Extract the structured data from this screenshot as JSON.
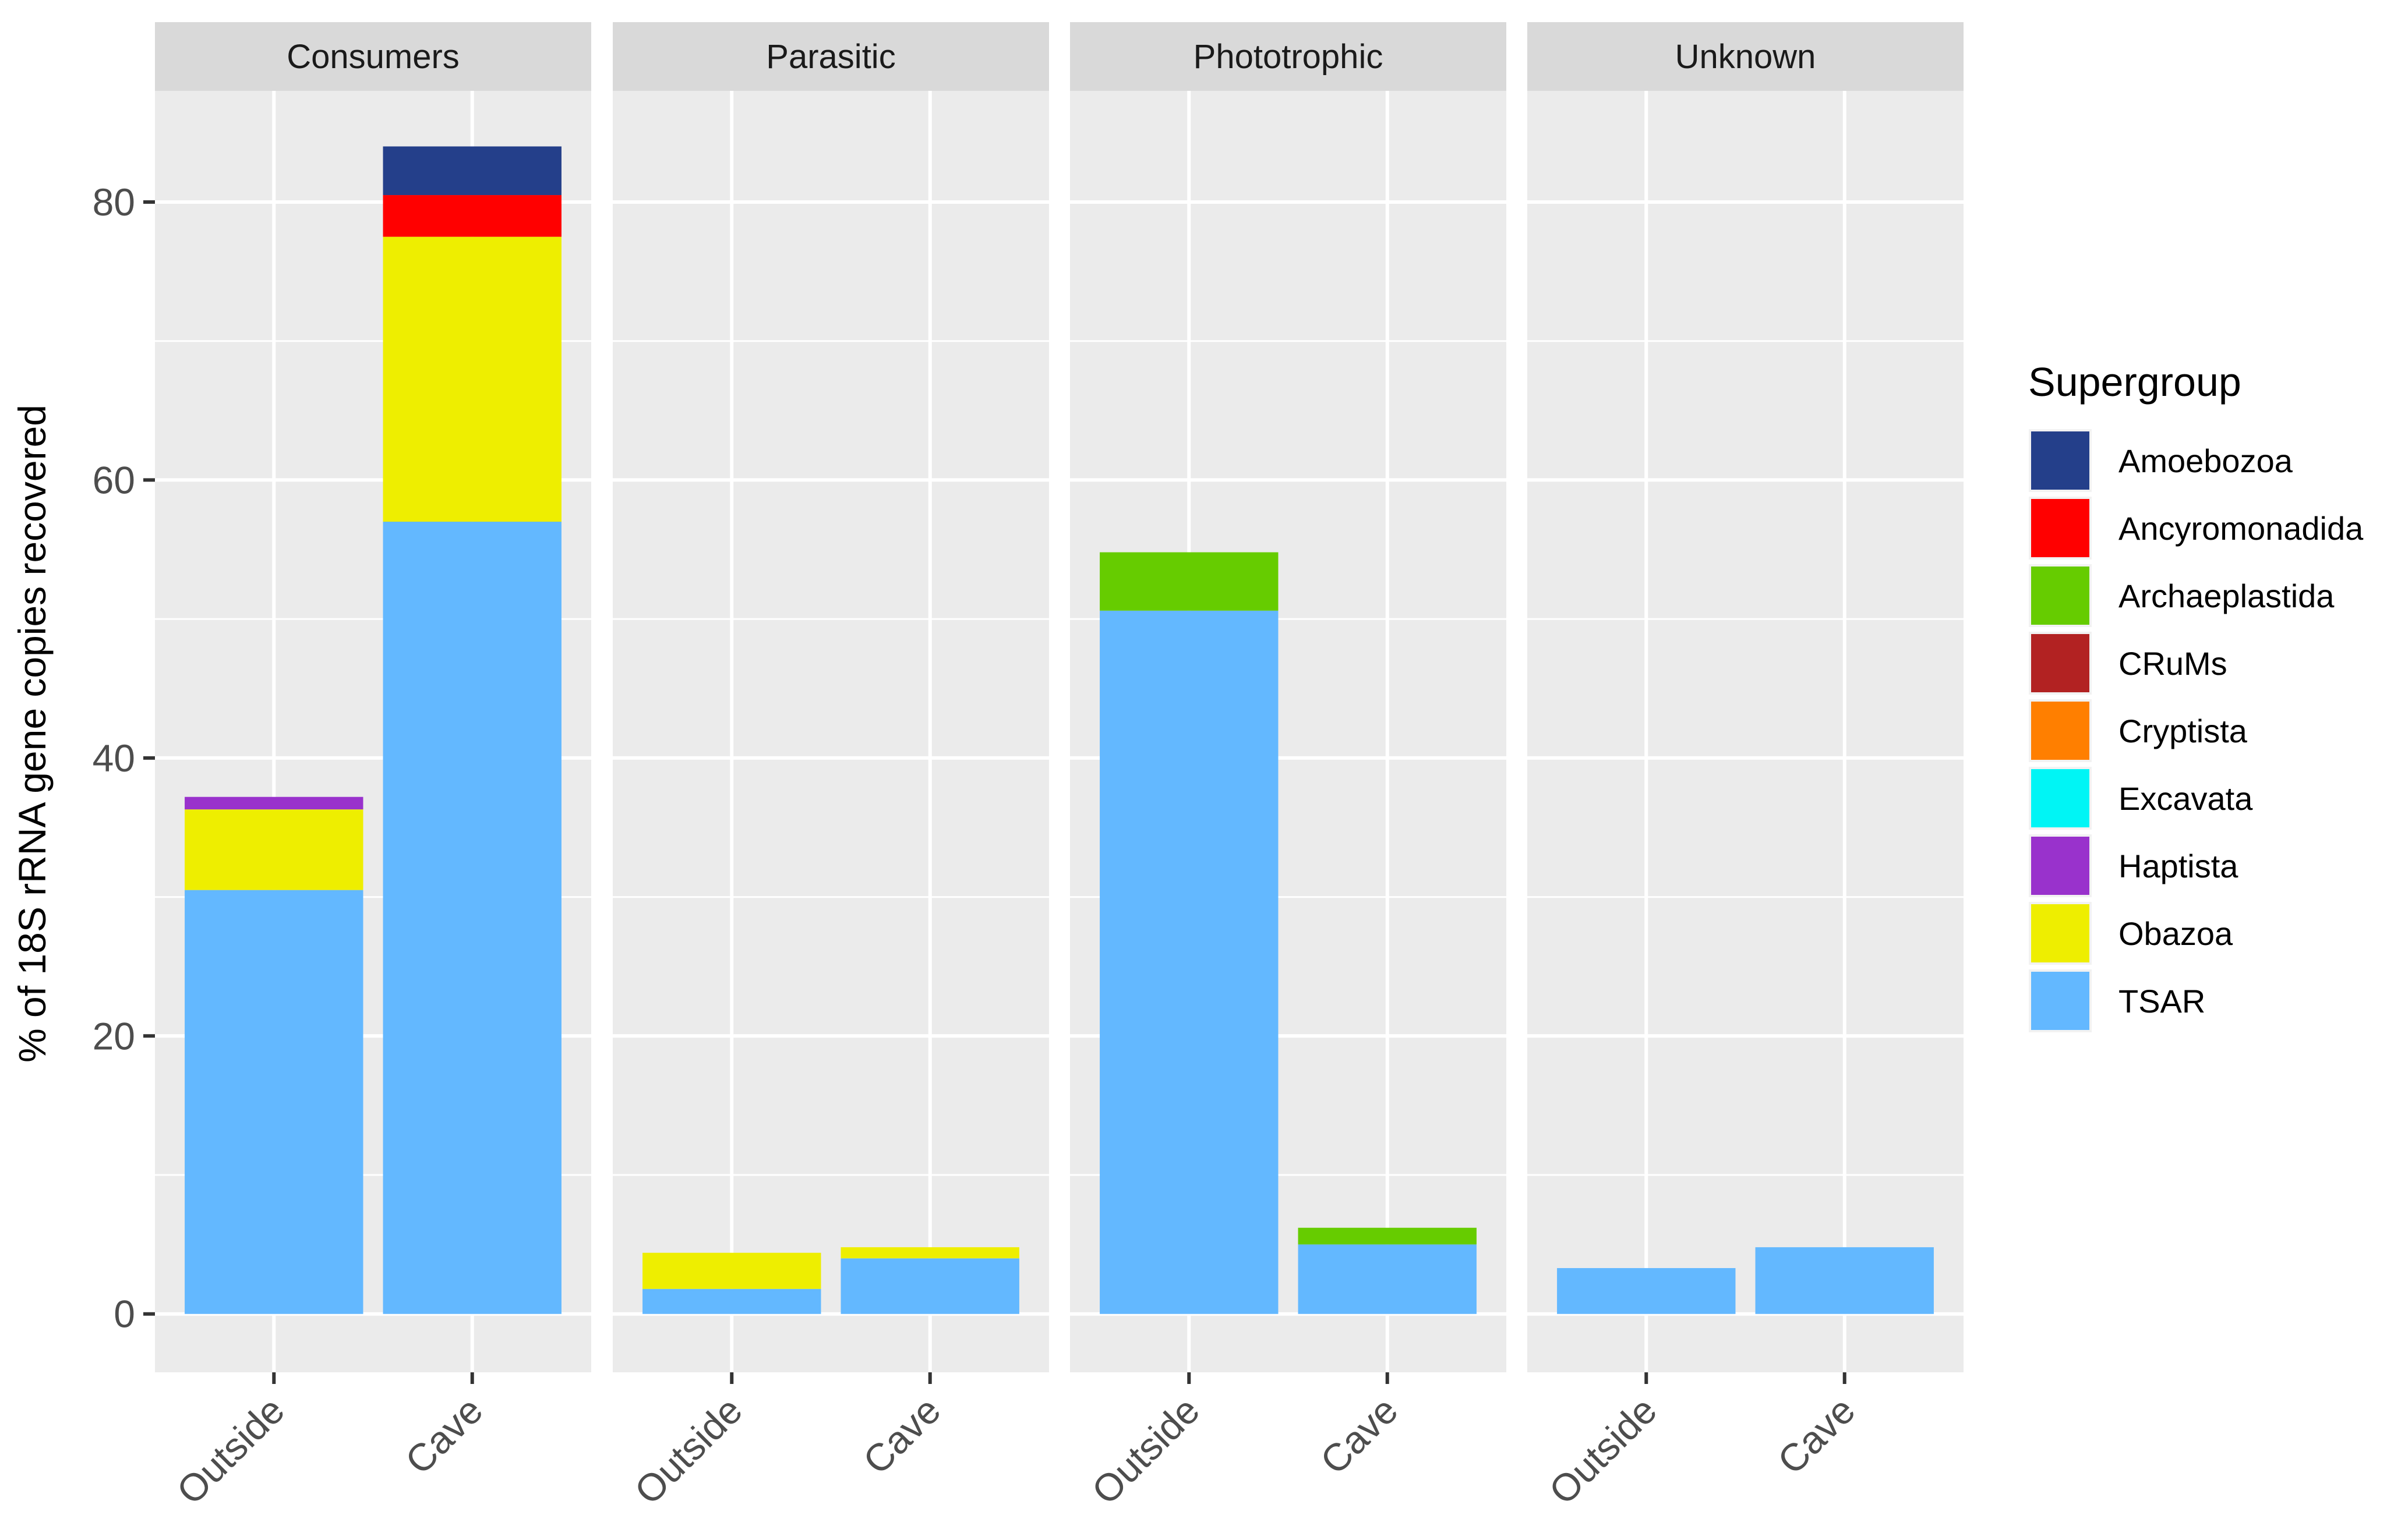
{
  "chart_data": {
    "type": "bar",
    "stacked": true,
    "faceted": true,
    "ylabel": "% of 18S rRNA gene copies recovered",
    "xlabel": "",
    "ylim": [
      -4.2,
      88
    ],
    "yticks": [
      0,
      20,
      40,
      60,
      80
    ],
    "categories": [
      "Outside",
      "Cave"
    ],
    "grid": true,
    "legend_position": "right",
    "legend_title": "Supergroup",
    "supergroups": [
      {
        "name": "Amoebozoa",
        "color": "#243F8A"
      },
      {
        "name": "Ancyromonadida",
        "color": "#FF0000"
      },
      {
        "name": "Archaeplastida",
        "color": "#66CC00"
      },
      {
        "name": "CRuMs",
        "color": "#B22222"
      },
      {
        "name": "Cryptista",
        "color": "#FF7F00"
      },
      {
        "name": "Excavata",
        "color": "#00F5F5"
      },
      {
        "name": "Haptista",
        "color": "#9932CC"
      },
      {
        "name": "Obazoa",
        "color": "#EEEE00"
      },
      {
        "name": "TSAR",
        "color": "#63B8FF"
      }
    ],
    "facets": [
      {
        "label": "Consumers",
        "bars": [
          {
            "category": "Outside",
            "segments": [
              {
                "group": "TSAR",
                "value": 30.5
              },
              {
                "group": "Obazoa",
                "value": 5.8
              },
              {
                "group": "Haptista",
                "value": 0.9
              }
            ]
          },
          {
            "category": "Cave",
            "segments": [
              {
                "group": "TSAR",
                "value": 57.0
              },
              {
                "group": "Obazoa",
                "value": 20.5
              },
              {
                "group": "Ancyromonadida",
                "value": 3.0
              },
              {
                "group": "Amoebozoa",
                "value": 3.5
              }
            ]
          }
        ]
      },
      {
        "label": "Parasitic",
        "bars": [
          {
            "category": "Outside",
            "segments": [
              {
                "group": "TSAR",
                "value": 1.8
              },
              {
                "group": "Obazoa",
                "value": 2.6
              }
            ]
          },
          {
            "category": "Cave",
            "segments": [
              {
                "group": "TSAR",
                "value": 4.0
              },
              {
                "group": "Obazoa",
                "value": 0.8
              }
            ]
          }
        ]
      },
      {
        "label": "Phototrophic",
        "bars": [
          {
            "category": "Outside",
            "segments": [
              {
                "group": "TSAR",
                "value": 50.6
              },
              {
                "group": "Archaeplastida",
                "value": 4.2
              }
            ]
          },
          {
            "category": "Cave",
            "segments": [
              {
                "group": "TSAR",
                "value": 5.0
              },
              {
                "group": "Archaeplastida",
                "value": 1.2
              }
            ]
          }
        ]
      },
      {
        "label": "Unknown",
        "bars": [
          {
            "category": "Outside",
            "segments": [
              {
                "group": "TSAR",
                "value": 3.3
              }
            ]
          },
          {
            "category": "Cave",
            "segments": [
              {
                "group": "TSAR",
                "value": 4.8
              }
            ]
          }
        ]
      }
    ]
  }
}
